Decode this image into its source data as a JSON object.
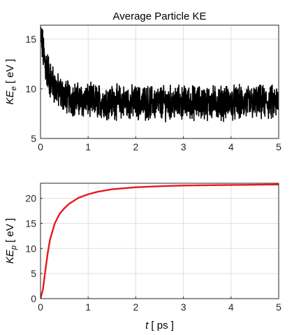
{
  "chart_data": [
    {
      "type": "line",
      "title": "Average Particle KE",
      "ylabel": {
        "main": "KE",
        "sub": "e",
        "unit": "  [ eV ]"
      },
      "xlabel": "",
      "xlim": [
        0,
        5
      ],
      "ylim": [
        5,
        16.4
      ],
      "xticks": [
        "0",
        "1",
        "2",
        "3",
        "4",
        "5"
      ],
      "yticks": [
        "5",
        "10",
        "15"
      ],
      "grid": true,
      "series": [
        {
          "color": "#000000",
          "style": "noisy",
          "x": [
            0,
            0.05,
            0.1,
            0.15,
            0.2,
            0.3,
            0.4,
            0.5,
            0.6,
            0.8,
            1.0,
            1.5,
            2.0,
            2.5,
            3.0,
            3.5,
            4.0,
            4.5,
            5.0
          ],
          "mean": [
            15.5,
            14.0,
            12.5,
            11.8,
            11.0,
            10.2,
            9.6,
            9.3,
            9.1,
            8.9,
            8.8,
            8.7,
            8.6,
            8.6,
            8.6,
            8.6,
            8.6,
            8.6,
            8.6
          ],
          "noise_amplitude": [
            1.2,
            1.6,
            1.8,
            1.8,
            1.6,
            1.5,
            1.4,
            1.4,
            1.4,
            1.4,
            1.4,
            1.4,
            1.4,
            1.4,
            1.4,
            1.4,
            1.4,
            1.4,
            1.4
          ]
        }
      ]
    },
    {
      "type": "line",
      "title": "",
      "ylabel": {
        "main": "KE",
        "sub": "p",
        "unit": "  [ eV ]"
      },
      "xlabel": {
        "main": "t",
        "unit": "  [ ps ]"
      },
      "xlim": [
        0,
        5
      ],
      "ylim": [
        0,
        23
      ],
      "xticks": [
        "0",
        "1",
        "2",
        "3",
        "4",
        "5"
      ],
      "yticks": [
        "0",
        "5",
        "10",
        "15",
        "20"
      ],
      "grid": true,
      "series": [
        {
          "color": "#e8191e",
          "x": [
            0,
            0.05,
            0.1,
            0.15,
            0.2,
            0.3,
            0.4,
            0.5,
            0.6,
            0.8,
            1.0,
            1.2,
            1.5,
            2.0,
            2.5,
            3.0,
            3.5,
            4.0,
            4.5,
            5.0
          ],
          "y": [
            0,
            1.8,
            5.5,
            9.0,
            11.8,
            15.0,
            16.9,
            18.0,
            18.9,
            20.1,
            20.8,
            21.3,
            21.8,
            22.2,
            22.4,
            22.55,
            22.6,
            22.65,
            22.7,
            22.75
          ]
        }
      ]
    }
  ]
}
